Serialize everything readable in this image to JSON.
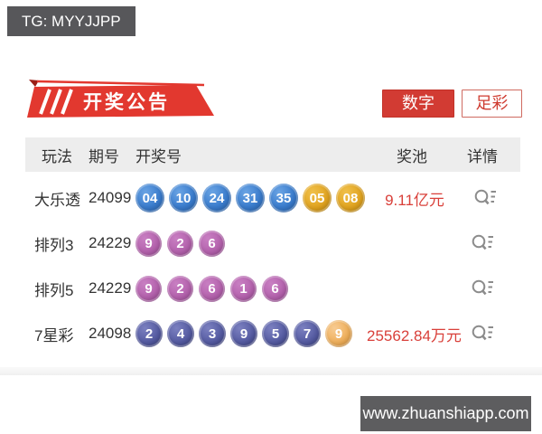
{
  "badges": {
    "tg": "TG: MYYJJPP",
    "site": "www.zhuanshiapp.com"
  },
  "banner": {
    "title": "开奖公告"
  },
  "tabs": [
    {
      "label": "数字"
    },
    {
      "label": "足彩"
    }
  ],
  "table": {
    "headers": [
      "玩法",
      "期号",
      "开奖号",
      "奖池",
      "详情"
    ],
    "rows": [
      {
        "type": "dlt",
        "game": "大乐透",
        "issue": "24099",
        "balls": [
          {
            "n": "04",
            "color": "blue"
          },
          {
            "n": "10",
            "color": "blue"
          },
          {
            "n": "24",
            "color": "blue"
          },
          {
            "n": "31",
            "color": "blue"
          },
          {
            "n": "35",
            "color": "blue"
          },
          {
            "n": "05",
            "color": "gold"
          },
          {
            "n": "08",
            "color": "gold"
          }
        ],
        "pool": "9.11亿元"
      },
      {
        "type": "pl",
        "game": "排列3",
        "issue": "24229",
        "balls": [
          {
            "n": "9",
            "color": "purple"
          },
          {
            "n": "2",
            "color": "purple"
          },
          {
            "n": "6",
            "color": "purple"
          }
        ],
        "pool": ""
      },
      {
        "type": "pl",
        "game": "排列5",
        "issue": "24229",
        "balls": [
          {
            "n": "9",
            "color": "purple"
          },
          {
            "n": "2",
            "color": "purple"
          },
          {
            "n": "6",
            "color": "purple"
          },
          {
            "n": "1",
            "color": "purple"
          },
          {
            "n": "6",
            "color": "purple"
          }
        ],
        "pool": ""
      },
      {
        "type": "qxc",
        "game": "7星彩",
        "issue": "24098",
        "balls": [
          {
            "n": "2",
            "color": "indigo"
          },
          {
            "n": "4",
            "color": "indigo"
          },
          {
            "n": "3",
            "color": "indigo"
          },
          {
            "n": "9",
            "color": "indigo"
          },
          {
            "n": "5",
            "color": "indigo"
          },
          {
            "n": "7",
            "color": "indigo"
          },
          {
            "n": "9",
            "color": "lightorange"
          }
        ],
        "pool": "25562.84万元"
      }
    ]
  },
  "colors": {
    "accent_red": "#dd3a32",
    "pool_text_red": "#d9403a",
    "ball_blue": "#3a7ccd",
    "ball_gold": "#e0a21e",
    "ball_purple": "#b360ac",
    "ball_indigo": "#52589f",
    "ball_lightorange": "#efae58",
    "badge_gray": "#58585a",
    "header_bg": "#ededed"
  }
}
